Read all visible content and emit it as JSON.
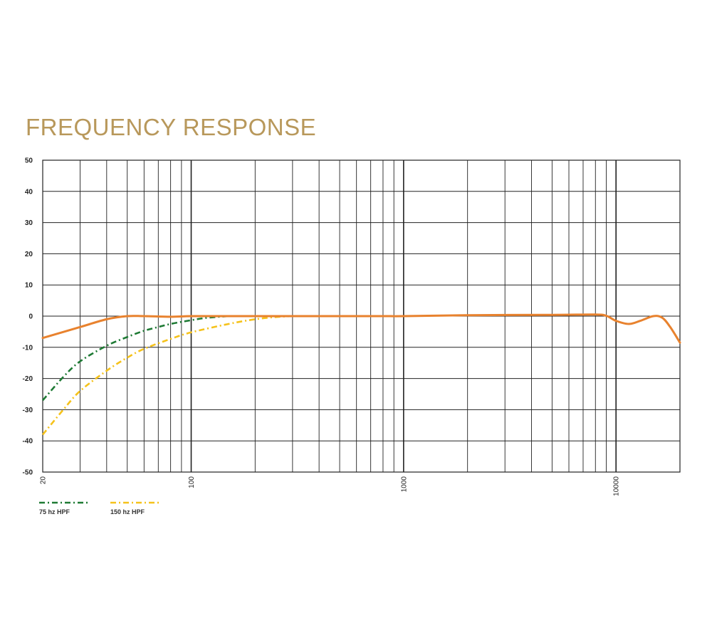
{
  "chart_data": {
    "type": "line",
    "title": "FREQUENCY RESPONSE",
    "xscale": "log",
    "xlim": [
      20,
      20000
    ],
    "ylim": [
      -50,
      50
    ],
    "y_ticks": [
      50,
      40,
      30,
      20,
      10,
      0,
      -10,
      -20,
      -30,
      -40,
      -50
    ],
    "x_tick_labels": [
      {
        "value": 20,
        "label": "20"
      },
      {
        "value": 100,
        "label": "100"
      },
      {
        "value": 1000,
        "label": "1000"
      },
      {
        "value": 10000,
        "label": "10000"
      }
    ],
    "grid": true,
    "legend_position": "bottom-left",
    "series": [
      {
        "name": "",
        "color": "#e8822e",
        "style": "solid",
        "x": [
          20,
          30,
          40,
          50,
          60,
          80,
          100,
          150,
          200,
          300,
          500,
          800,
          1000,
          2000,
          5000,
          8000,
          9000,
          10000,
          11500,
          13000,
          15000,
          16500,
          18000,
          20000
        ],
        "y": [
          -7,
          -3.5,
          -1,
          0,
          0,
          -0.2,
          0,
          0,
          0,
          0,
          0,
          0,
          0,
          0.3,
          0.4,
          0.5,
          0.1,
          -1.5,
          -2.5,
          -1.5,
          0,
          -0.5,
          -3.5,
          -8.5
        ]
      },
      {
        "name": "75 hz HPF",
        "color": "#1e7a34",
        "style": "dash-dot",
        "x": [
          20,
          25,
          30,
          40,
          50,
          60,
          70,
          80,
          100,
          120,
          150
        ],
        "y": [
          -27,
          -19.5,
          -14.5,
          -9.5,
          -6.7,
          -4.7,
          -3.5,
          -2.5,
          -1.3,
          -0.5,
          0
        ]
      },
      {
        "name": "150 hz HPF",
        "color": "#f5c21b",
        "style": "dash-dot",
        "x": [
          20,
          25,
          30,
          40,
          50,
          60,
          80,
          100,
          150,
          200,
          250,
          300
        ],
        "y": [
          -38,
          -30,
          -24,
          -17.5,
          -13.3,
          -10.5,
          -7.3,
          -5.2,
          -2.5,
          -1,
          -0.3,
          0
        ]
      }
    ]
  }
}
